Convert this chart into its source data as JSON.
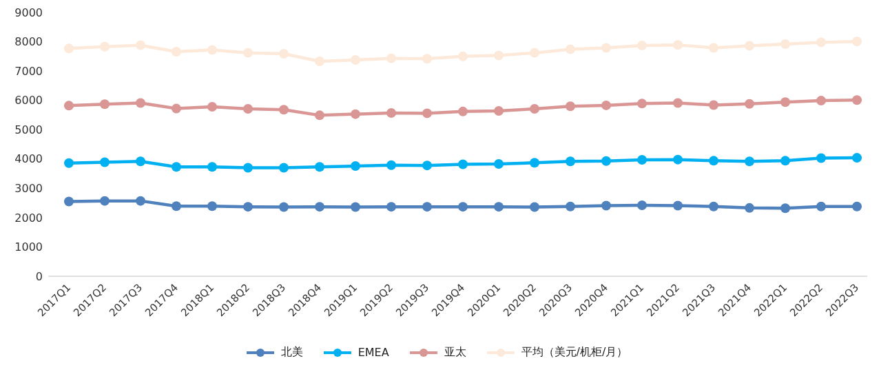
{
  "chart_data": {
    "type": "line",
    "categories": [
      "2017Q1",
      "2017Q2",
      "2017Q3",
      "2017Q4",
      "2018Q1",
      "2018Q2",
      "2018Q3",
      "2018Q4",
      "2019Q1",
      "2019Q2",
      "2019Q3",
      "2019Q4",
      "2020Q1",
      "2020Q2",
      "2020Q3",
      "2020Q4",
      "2021Q1",
      "2021Q2",
      "2021Q3",
      "2021Q4",
      "2022Q1",
      "2022Q2",
      "2022Q3"
    ],
    "series": [
      {
        "name": "北美",
        "color": "#4f81bd",
        "values": [
          2550,
          2570,
          2570,
          2390,
          2390,
          2370,
          2360,
          2370,
          2360,
          2370,
          2370,
          2370,
          2370,
          2360,
          2380,
          2410,
          2420,
          2410,
          2380,
          2330,
          2320,
          2380,
          2380
        ]
      },
      {
        "name": "EMEA",
        "color": "#00b0f0",
        "values": [
          3860,
          3890,
          3920,
          3730,
          3730,
          3700,
          3700,
          3730,
          3760,
          3790,
          3780,
          3820,
          3830,
          3870,
          3920,
          3930,
          3970,
          3980,
          3940,
          3920,
          3940,
          4030,
          4040
        ]
      },
      {
        "name": "亚太",
        "color": "#d99694",
        "values": [
          5820,
          5870,
          5910,
          5720,
          5780,
          5710,
          5680,
          5490,
          5530,
          5570,
          5560,
          5620,
          5640,
          5710,
          5800,
          5830,
          5890,
          5910,
          5840,
          5880,
          5940,
          5990,
          6010
        ]
      },
      {
        "name": "平均（美元/机柜/月）",
        "color": "#fde9d9",
        "values": [
          7770,
          7830,
          7880,
          7660,
          7720,
          7620,
          7590,
          7330,
          7380,
          7430,
          7420,
          7500,
          7530,
          7620,
          7740,
          7790,
          7870,
          7890,
          7790,
          7860,
          7920,
          7980,
          8010
        ]
      }
    ],
    "ylim": [
      0,
      9000
    ],
    "yticks": [
      0,
      1000,
      2000,
      3000,
      4000,
      5000,
      6000,
      7000,
      8000,
      9000
    ],
    "grid": false,
    "legend": "bottom",
    "marker": "circle",
    "line_style": "solid"
  }
}
